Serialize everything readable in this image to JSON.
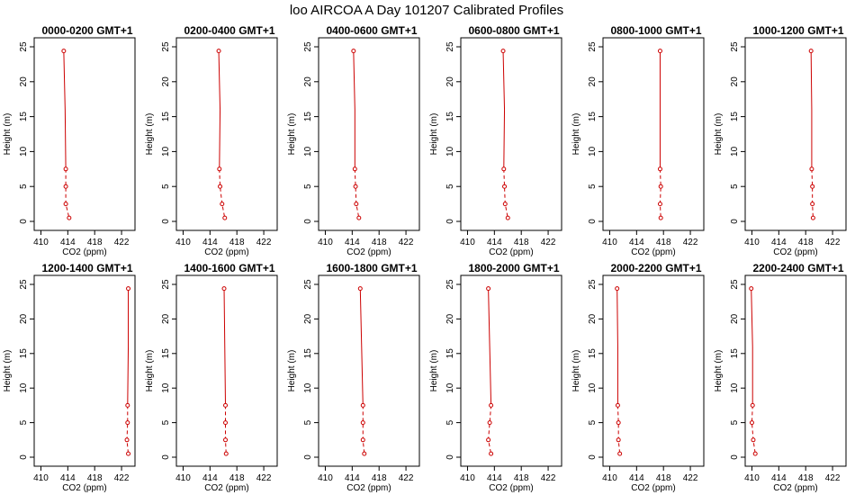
{
  "page": {
    "title": "loo AIRCOA A  Day 101207  Calibrated Profiles"
  },
  "style": {
    "series_color": "#cc0000",
    "axis_color": "#000000"
  },
  "chart_data": {
    "type": "line",
    "xlabel": "CO2 (ppm)",
    "ylabel": "Height (m)",
    "xlim": [
      409,
      424
    ],
    "ylim": [
      0,
      25
    ],
    "xticks": [
      410,
      414,
      418,
      422
    ],
    "yticks": [
      0,
      5,
      10,
      15,
      20,
      25
    ],
    "heights": [
      24.4,
      16.0,
      7.5,
      5.0,
      2.5,
      0.5
    ],
    "panels": [
      {
        "title": "0000-0200 GMT+1",
        "x": [
          413.4,
          413.6,
          413.7,
          413.7,
          413.7,
          414.2
        ]
      },
      {
        "title": "0200-0400 GMT+1",
        "x": [
          415.3,
          415.5,
          415.4,
          415.5,
          415.8,
          416.2
        ]
      },
      {
        "title": "0400-0600 GMT+1",
        "x": [
          414.2,
          414.4,
          414.4,
          414.5,
          414.6,
          415.0
        ]
      },
      {
        "title": "0600-0800 GMT+1",
        "x": [
          415.3,
          415.5,
          415.4,
          415.5,
          415.6,
          416.0
        ]
      },
      {
        "title": "0800-1000 GMT+1",
        "x": [
          417.5,
          417.5,
          417.5,
          417.6,
          417.5,
          417.6
        ]
      },
      {
        "title": "1000-1200 GMT+1",
        "x": [
          418.8,
          418.9,
          418.9,
          419.0,
          419.0,
          419.1
        ]
      },
      {
        "title": "1200-1400 GMT+1",
        "x": [
          423.0,
          423.0,
          422.9,
          422.9,
          422.8,
          423.0
        ]
      },
      {
        "title": "1400-1600 GMT+1",
        "x": [
          416.1,
          416.2,
          416.3,
          416.3,
          416.3,
          416.4
        ]
      },
      {
        "title": "1600-1800 GMT+1",
        "x": [
          415.2,
          415.4,
          415.6,
          415.6,
          415.6,
          415.8
        ]
      },
      {
        "title": "1800-2000 GMT+1",
        "x": [
          413.1,
          413.3,
          413.5,
          413.3,
          413.1,
          413.5
        ]
      },
      {
        "title": "2000-2200 GMT+1",
        "x": [
          411.1,
          411.2,
          411.2,
          411.3,
          411.3,
          411.5
        ]
      },
      {
        "title": "2200-2400 GMT+1",
        "x": [
          409.9,
          410.1,
          410.1,
          410.0,
          410.2,
          410.5
        ]
      }
    ]
  }
}
